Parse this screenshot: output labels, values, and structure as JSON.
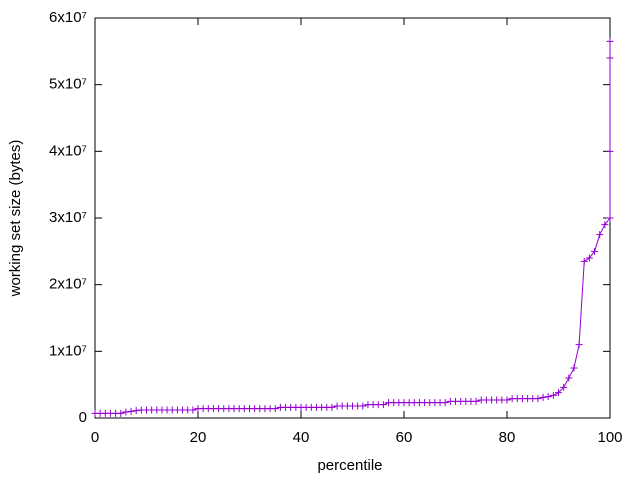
{
  "chart_data": {
    "type": "line",
    "xlabel": "percentile",
    "ylabel": "working set size (bytes)",
    "xlim": [
      0,
      100
    ],
    "xticks": [
      0,
      20,
      40,
      60,
      80,
      100
    ],
    "ylim": [
      0,
      60000000
    ],
    "yticks": [
      0,
      {
        "value": 10000000,
        "label": "1x10⁷"
      },
      {
        "value": 20000000,
        "label": "2x10⁷"
      },
      {
        "value": 30000000,
        "label": "3x10⁷"
      },
      {
        "value": 40000000,
        "label": "4x10⁷"
      },
      {
        "value": 50000000,
        "label": "5x10⁷"
      },
      {
        "value": 60000000,
        "label": "6x10⁷"
      }
    ],
    "x": [
      0,
      1,
      2,
      3,
      4,
      5,
      6,
      7,
      8,
      9,
      10,
      11,
      12,
      13,
      14,
      15,
      16,
      17,
      18,
      19,
      20,
      21,
      22,
      23,
      24,
      25,
      26,
      27,
      28,
      29,
      30,
      31,
      32,
      33,
      34,
      35,
      36,
      37,
      38,
      39,
      40,
      41,
      42,
      43,
      44,
      45,
      46,
      47,
      48,
      49,
      50,
      51,
      52,
      53,
      54,
      55,
      56,
      57,
      58,
      59,
      60,
      61,
      62,
      63,
      64,
      65,
      66,
      67,
      68,
      69,
      70,
      71,
      72,
      73,
      74,
      75,
      76,
      77,
      78,
      79,
      80,
      81,
      82,
      83,
      84,
      85,
      86,
      87,
      88,
      89,
      90,
      91,
      92,
      93,
      94,
      95,
      96,
      97,
      98,
      99,
      100,
      100,
      100,
      100
    ],
    "series": [
      {
        "color": "#9400d3",
        "values": [
          700000,
          700000,
          700000,
          700000,
          700000,
          700000,
          900000,
          1000000,
          1100000,
          1200000,
          1200000,
          1200000,
          1200000,
          1200000,
          1200000,
          1200000,
          1200000,
          1200000,
          1200000,
          1200000,
          1400000,
          1400000,
          1400000,
          1400000,
          1400000,
          1400000,
          1400000,
          1400000,
          1400000,
          1400000,
          1400000,
          1400000,
          1400000,
          1400000,
          1400000,
          1400000,
          1600000,
          1600000,
          1600000,
          1600000,
          1600000,
          1600000,
          1600000,
          1600000,
          1600000,
          1600000,
          1600000,
          1800000,
          1800000,
          1800000,
          1800000,
          1800000,
          1800000,
          2000000,
          2000000,
          2000000,
          2000000,
          2300000,
          2300000,
          2300000,
          2300000,
          2300000,
          2300000,
          2300000,
          2300000,
          2300000,
          2300000,
          2300000,
          2300000,
          2500000,
          2500000,
          2500000,
          2500000,
          2500000,
          2500000,
          2700000,
          2700000,
          2700000,
          2700000,
          2700000,
          2700000,
          2900000,
          2900000,
          2900000,
          2900000,
          2900000,
          2900000,
          3100000,
          3200000,
          3400000,
          3800000,
          4600000,
          6000000,
          7500000,
          11000000,
          23500000,
          24000000,
          25000000,
          27500000,
          29000000,
          30000000,
          40000000,
          54000000,
          56500000
        ]
      }
    ]
  }
}
